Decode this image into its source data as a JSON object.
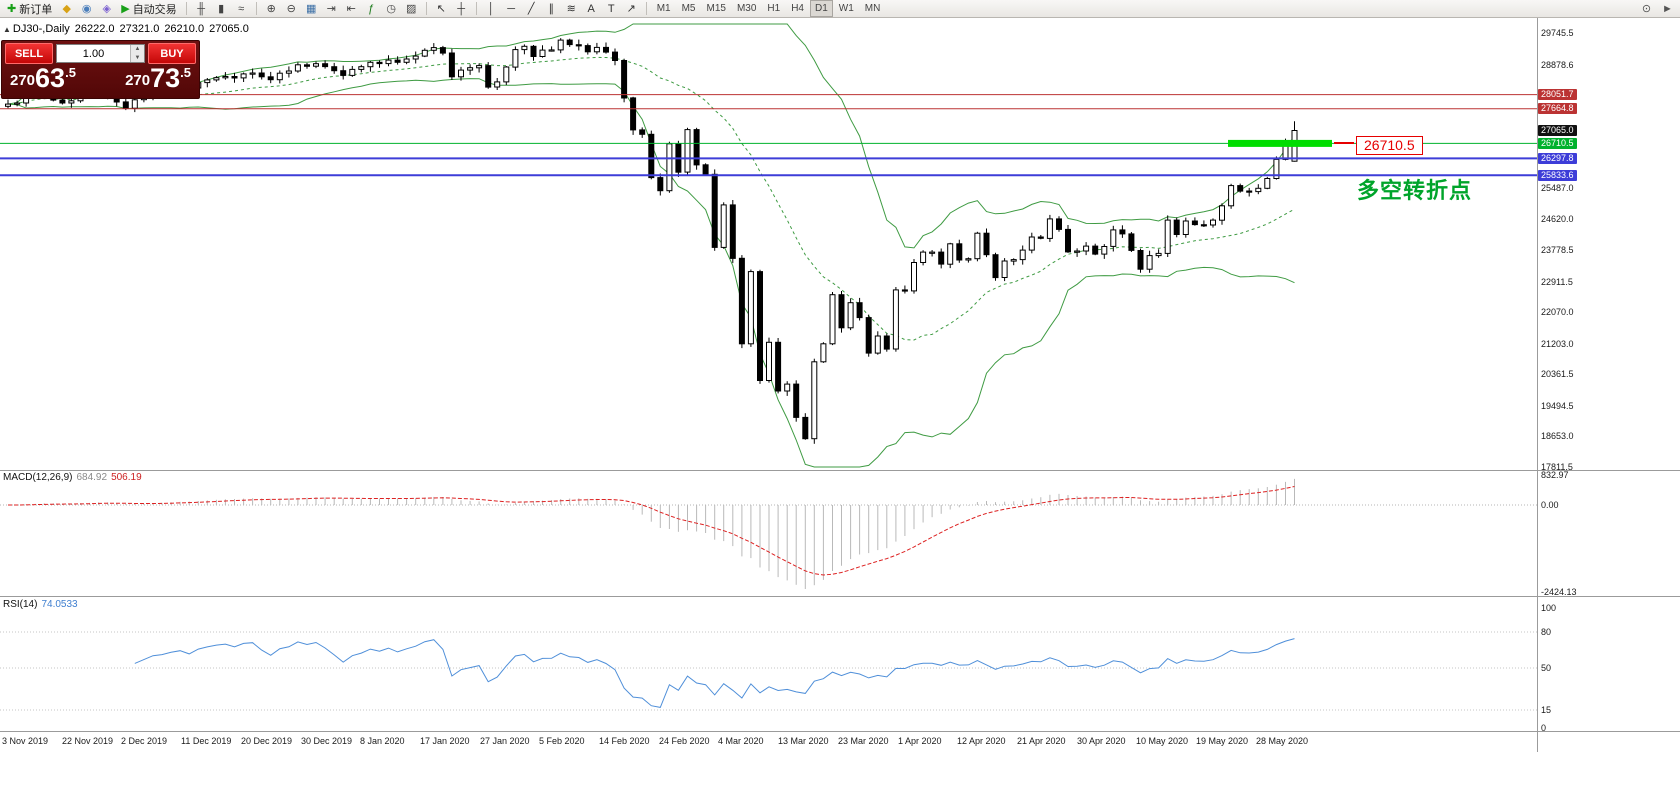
{
  "toolbar": {
    "items": [
      {
        "kind": "button",
        "name": "new-order-button",
        "icon": "new-order-icon",
        "glyph": "✚",
        "color": "#18a018",
        "label": "新订单"
      },
      {
        "kind": "icon",
        "name": "favorites-icon",
        "glyph": "◆",
        "color": "#d8a216"
      },
      {
        "kind": "icon",
        "name": "profile-icon",
        "glyph": "◉",
        "color": "#4a7ebb"
      },
      {
        "kind": "icon",
        "name": "community-icon",
        "glyph": "◈",
        "color": "#7a5fd0"
      },
      {
        "kind": "button",
        "name": "autotrade-button",
        "icon": "autotrade-play-icon",
        "glyph": "▶",
        "color": "#18a018",
        "label": "自动交易"
      },
      {
        "kind": "sep"
      },
      {
        "kind": "icon",
        "name": "ohlc-bars-icon",
        "glyph": "╫",
        "color": "#444444"
      },
      {
        "kind": "icon",
        "name": "candlestick-icon",
        "glyph": "▮",
        "color": "#444444"
      },
      {
        "kind": "icon",
        "name": "line-chart-icon",
        "glyph": "≈",
        "color": "#444444"
      },
      {
        "kind": "sep"
      },
      {
        "kind": "icon",
        "name": "zoom-in-icon",
        "glyph": "⊕",
        "color": "#444444"
      },
      {
        "kind": "icon",
        "name": "zoom-out-icon",
        "glyph": "⊖",
        "color": "#444444"
      },
      {
        "kind": "icon",
        "name": "tile-windows-icon",
        "glyph": "▦",
        "color": "#3a6ea5"
      },
      {
        "kind": "icon",
        "name": "auto-scroll-icon",
        "glyph": "⇥",
        "color": "#444444"
      },
      {
        "kind": "icon",
        "name": "chart-shift-icon",
        "glyph": "⇤",
        "color": "#444444"
      },
      {
        "kind": "icon",
        "name": "indicators-icon",
        "glyph": "ƒ",
        "color": "#1a7a1a"
      },
      {
        "kind": "icon",
        "name": "timeframes-menu-icon",
        "glyph": "◷",
        "color": "#444444"
      },
      {
        "kind": "icon",
        "name": "templates-icon",
        "glyph": "▨",
        "color": "#444444"
      },
      {
        "kind": "sep"
      },
      {
        "kind": "icon",
        "name": "cursor-icon",
        "glyph": "↖",
        "color": "#333333"
      },
      {
        "kind": "icon",
        "name": "crosshair-icon",
        "glyph": "┼",
        "color": "#333333"
      },
      {
        "kind": "sep"
      },
      {
        "kind": "icon",
        "name": "vertical-line-icon",
        "glyph": "│",
        "color": "#333333"
      },
      {
        "kind": "icon",
        "name": "horizontal-line-icon",
        "glyph": "─",
        "color": "#333333"
      },
      {
        "kind": "icon",
        "name": "trendline-icon",
        "glyph": "╱",
        "color": "#333333"
      },
      {
        "kind": "icon",
        "name": "channel-icon",
        "glyph": "∥",
        "color": "#333333"
      },
      {
        "kind": "icon",
        "name": "fibonacci-icon",
        "glyph": "≋",
        "color": "#333333"
      },
      {
        "kind": "icon",
        "name": "text-icon",
        "glyph": "A",
        "color": "#333333"
      },
      {
        "kind": "icon",
        "name": "label-icon",
        "glyph": "T",
        "color": "#333333"
      },
      {
        "kind": "icon",
        "name": "arrows-icon",
        "glyph": "↗",
        "color": "#333333"
      },
      {
        "kind": "sep"
      }
    ],
    "timeframes": [
      "M1",
      "M5",
      "M15",
      "M30",
      "H1",
      "H4",
      "D1",
      "W1",
      "MN"
    ],
    "active_timeframe": "D1",
    "right_icons": [
      {
        "name": "search-icon",
        "glyph": "⊙",
        "color": "#555555"
      },
      {
        "name": "pointer-icon",
        "glyph": "►",
        "color": "#555555"
      }
    ]
  },
  "quote_panel": {
    "sell_label": "SELL",
    "buy_label": "BUY",
    "volume": "1.00",
    "sell_price": "27063.5",
    "buy_price": "27073.5",
    "spin_up_icon": "▲",
    "spin_down_icon": "▼"
  },
  "chart": {
    "collapse_icon": "▲",
    "header_symbol": "DJ30-,Daily",
    "open": "26222.0",
    "high": "27321.0",
    "low": "26210.0",
    "close": "27065.0"
  },
  "macd_panel": {
    "name": "MACD(12,26,9)",
    "value": "684.92",
    "signal": "506.19"
  },
  "rsi_panel": {
    "name": "RSI(14)",
    "value": "74.0533"
  },
  "chart_data": {
    "type": "candlestick",
    "symbol": "DJ30-",
    "timeframe": "Daily",
    "last_bar_ohlc": {
      "open": 26222.0,
      "high": 27321.0,
      "low": 26210.0,
      "close": 27065.0
    },
    "closes": [
      27790,
      27820,
      28000,
      28040,
      28060,
      27900,
      27820,
      27880,
      28070,
      28110,
      28160,
      28050,
      27850,
      27680,
      27910,
      28015,
      28135,
      28170,
      28240,
      28290,
      28235,
      28380,
      28455,
      28515,
      28550,
      28510,
      28620,
      28645,
      28540,
      28460,
      28640,
      28700,
      28870,
      28830,
      28900,
      28820,
      28710,
      28580,
      28745,
      28820,
      28940,
      28905,
      29000,
      28940,
      29030,
      29110,
      29270,
      29345,
      29195,
      28540,
      28725,
      28790,
      28850,
      28260,
      28400,
      28810,
      29290,
      29380,
      29100,
      29275,
      29280,
      29550,
      29425,
      29400,
      29230,
      29350,
      29220,
      28990,
      27960,
      27080,
      26960,
      25770,
      25410,
      26700,
      25920,
      27090,
      26120,
      25860,
      23850,
      25020,
      23550,
      21200,
      23185,
      20190,
      21240,
      19900,
      20090,
      19175,
      18590,
      20705,
      21200,
      22550,
      21640,
      22330,
      21920,
      20945,
      21415,
      21055,
      22680,
      22655,
      23435,
      23720,
      23720,
      23390,
      23950,
      23505,
      23540,
      24240,
      23650,
      23020,
      23475,
      23515,
      23775,
      24135,
      24100,
      24635,
      24345,
      23725,
      23750,
      23885,
      23665,
      23875,
      24330,
      24220,
      23765,
      23250,
      23625,
      23685,
      24600,
      24205,
      24575,
      24475,
      24465,
      24600,
      24995,
      25550,
      25400,
      25385,
      25475,
      25745,
      26270,
      26705,
      27065
    ],
    "y_axis_labels": [
      "29745.5",
      "28878.6",
      "25487.0",
      "24620.0",
      "23778.5",
      "22911.5",
      "22070.0",
      "21203.0",
      "20361.5",
      "19494.5",
      "18653.0",
      "17811.5"
    ],
    "x_tick_labels": [
      "3 Nov 2019",
      "22 Nov 2019",
      "2 Dec 2019",
      "11 Dec 2019",
      "20 Dec 2019",
      "30 Dec 2019",
      "8 Jan 2020",
      "17 Jan 2020",
      "27 Jan 2020",
      "5 Feb 2020",
      "14 Feb 2020",
      "24 Feb 2020",
      "4 Mar 2020",
      "13 Mar 2020",
      "23 Mar 2020",
      "1 Apr 2020",
      "12 Apr 2020",
      "21 Apr 2020",
      "30 Apr 2020",
      "10 May 2020",
      "19 May 2020",
      "28 May 2020"
    ],
    "levels": [
      {
        "price": 28051.7,
        "tag": "28051.7",
        "color": "#bb3333",
        "line": true,
        "lw": 1
      },
      {
        "price": 27664.8,
        "tag": "27664.8",
        "color": "#bb3333",
        "line": true,
        "lw": 1
      },
      {
        "price": 27065.0,
        "tag": "27065.0",
        "color": "#111111",
        "line": false,
        "lw": 1
      },
      {
        "price": 26710.5,
        "tag": "26710.5",
        "color": "#00b22d",
        "line": true,
        "lw": 1
      },
      {
        "price": 26297.8,
        "tag": "26297.8",
        "color": "#3d3dd8",
        "line": true,
        "lw": 2
      },
      {
        "price": 25833.6,
        "tag": "25833.6",
        "color": "#3d3dd8",
        "line": true,
        "lw": 2
      }
    ],
    "highlight": {
      "price": 26710.5,
      "label": "26710.5",
      "segment_color": "#00dd00"
    },
    "annotation_text": "多空转折点",
    "bollinger": {
      "period": 20,
      "deviation": 2,
      "color": "#3f9b43"
    },
    "macd": {
      "fast": 12,
      "slow": 26,
      "signal": 9,
      "current": "684.92",
      "current_signal": "506.19",
      "axis_labels": [
        "832.97",
        "0.00",
        "-2424.13"
      ],
      "histogram_color": "#b9b9b9",
      "signal_color": "#dd2222"
    },
    "rsi": {
      "period": 14,
      "current": "74.0533",
      "axis_labels": [
        "100",
        "80",
        "50",
        "15",
        "0"
      ],
      "levels": [
        80,
        50,
        15
      ],
      "color": "#4f8fd9"
    }
  }
}
